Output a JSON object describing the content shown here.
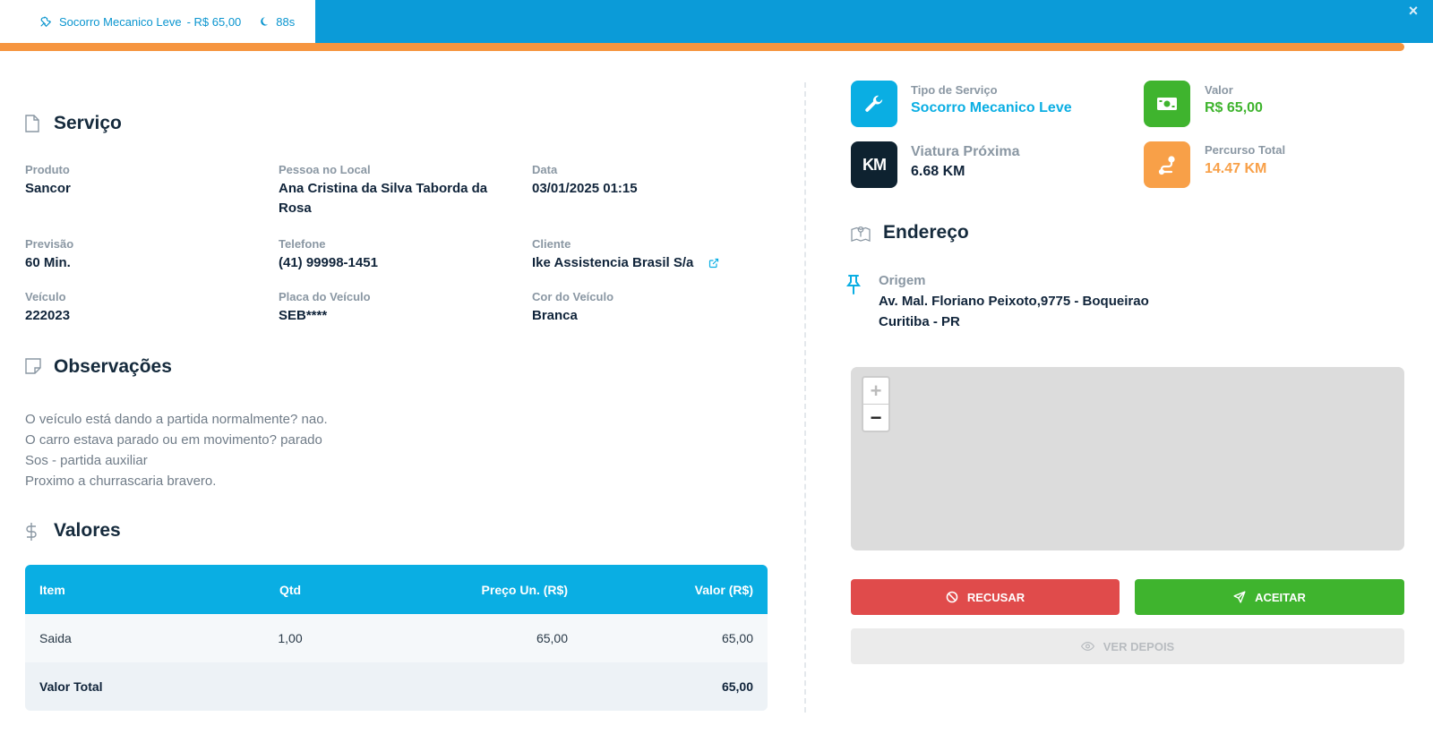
{
  "topbar": {
    "service": "Socorro Mecanico Leve",
    "price": "- R$ 65,00",
    "timer": "88s",
    "close": "×"
  },
  "colors": {
    "primary": "#0aaee3",
    "success": "#3fb42e",
    "danger": "#e04b4b",
    "warning": "#f8a048",
    "dark": "#0e2230"
  },
  "servico": {
    "title": "Serviço",
    "fields": [
      {
        "label": "Produto",
        "value": "Sancor"
      },
      {
        "label": "Pessoa no Local",
        "value": "Ana Cristina da Silva Taborda da Rosa"
      },
      {
        "label": "Data",
        "value": "03/01/2025 01:15"
      },
      {
        "label": "Previsão",
        "value": "60 Min."
      },
      {
        "label": "Telefone",
        "value": "(41) 99998-1451"
      },
      {
        "label": "Cliente",
        "value": "Ike Assistencia Brasil S/a"
      },
      {
        "label": "Veículo",
        "value": "222023"
      },
      {
        "label": "Placa do Veículo",
        "value": "SEB****"
      },
      {
        "label": "Cor do Veículo",
        "value": "Branca"
      }
    ]
  },
  "observacoes": {
    "title": "Observações",
    "lines": [
      "O veículo está dando a partida normalmente? nao.",
      "O carro estava parado ou em movimento? parado",
      "Sos - partida auxiliar",
      "Proximo a churrascaria bravero."
    ]
  },
  "valores": {
    "title": "Valores",
    "headers": {
      "item": "Item",
      "qtd": "Qtd",
      "preco": "Preço Un. (R$)",
      "valor": "Valor (R$)"
    },
    "rows": [
      {
        "item": "Saida",
        "qtd": "1,00",
        "preco": "65,00",
        "valor": "65,00"
      }
    ],
    "total_label": "Valor Total",
    "total_value": "65,00"
  },
  "stats": {
    "tipo": {
      "label": "Tipo de Serviço",
      "value": "Socorro Mecanico Leve",
      "icon": "wrench-icon"
    },
    "valor": {
      "label": "Valor",
      "value": "R$ 65,00",
      "icon": "money-icon"
    },
    "viatura": {
      "label": "Viatura Próxima",
      "value": "6.68 KM",
      "icon": "km-icon",
      "badge": "KM"
    },
    "percurso": {
      "label": "Percurso Total",
      "value": "14.47 KM",
      "icon": "route-icon"
    }
  },
  "endereco": {
    "title": "Endereço",
    "origem_label": "Origem",
    "line1": "Av. Mal. Floriano Peixoto,9775 - Boqueirao",
    "line2": "Curitiba - PR"
  },
  "map": {
    "zoom_in": "+",
    "zoom_out": "−"
  },
  "actions": {
    "recusar": "RECUSAR",
    "aceitar": "ACEITAR",
    "ver_depois": "VER DEPOIS"
  }
}
